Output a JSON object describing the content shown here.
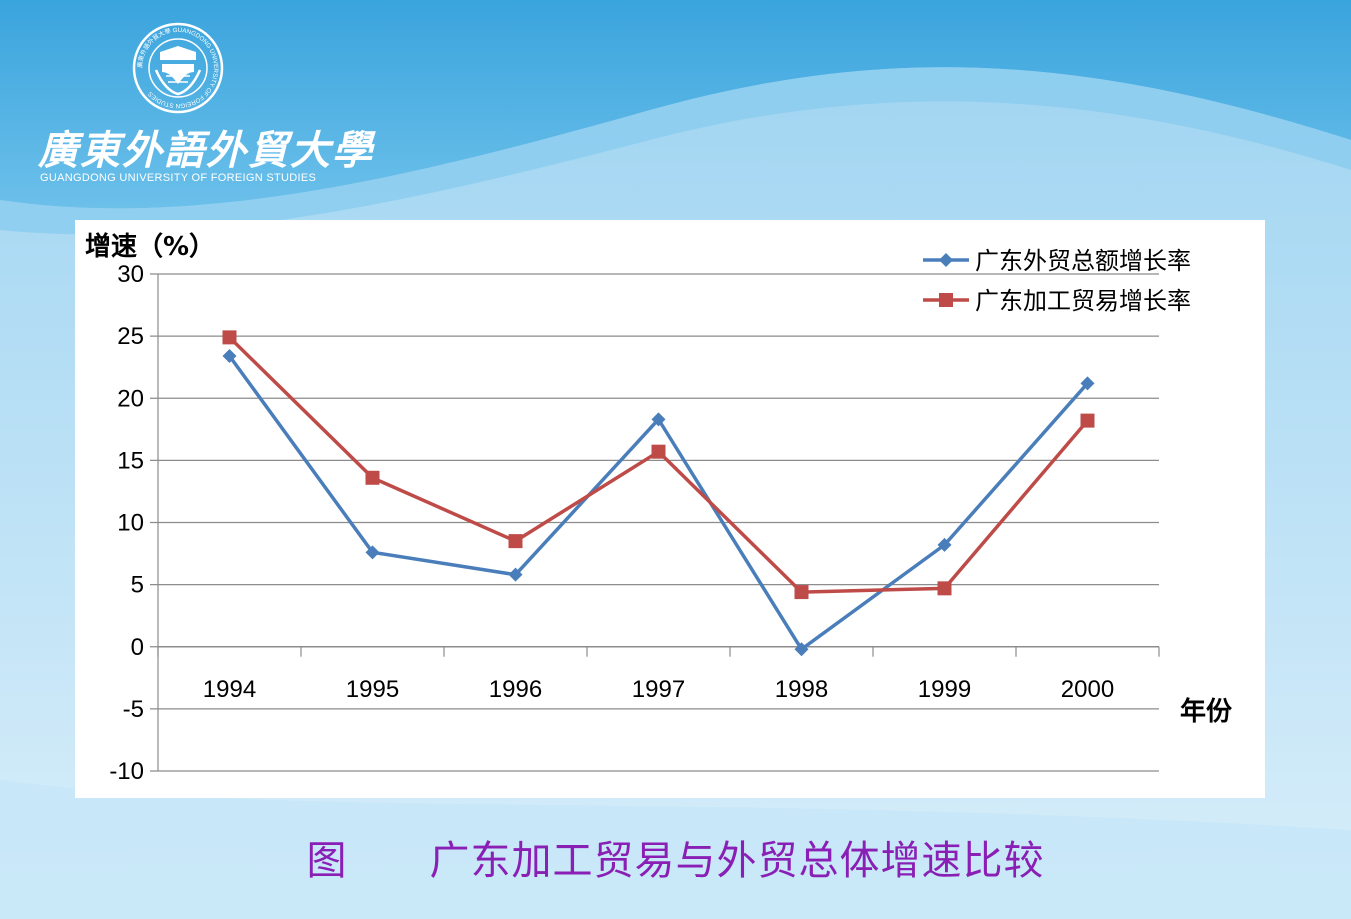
{
  "logo": {
    "emblem_icon": "university-seal-icon",
    "name_cn": "廣東外語外貿大學",
    "name_en": "GUANGDONG UNIVERSITY OF FOREIGN STUDIES",
    "emblem_ring_text": "廣東外語外貿大學 GUANGDONG UNIVERSITY OF FOREIGN STUDIES"
  },
  "caption": "图　　广东加工贸易与外贸总体增速比较",
  "chart_data": {
    "type": "line",
    "title": "",
    "ylabel": "增速（%）",
    "xlabel": "年份",
    "categories": [
      "1994",
      "1995",
      "1996",
      "1997",
      "1998",
      "1999",
      "2000"
    ],
    "ylim": [
      -10,
      30
    ],
    "yticks": [
      "30",
      "25",
      "20",
      "15",
      "10",
      "5",
      "0",
      "-5",
      "-10"
    ],
    "grid": true,
    "legend_position": "top-right",
    "series": [
      {
        "name": "广东外贸总额增长率",
        "values": [
          23.4,
          7.6,
          5.8,
          18.3,
          -0.2,
          8.2,
          21.2
        ],
        "color": "#4a7ebb",
        "marker": "diamond"
      },
      {
        "name": "广东加工贸易增长率",
        "values": [
          24.9,
          13.6,
          8.5,
          15.7,
          4.4,
          4.7,
          18.2
        ],
        "color": "#be4b48",
        "marker": "square"
      }
    ]
  }
}
